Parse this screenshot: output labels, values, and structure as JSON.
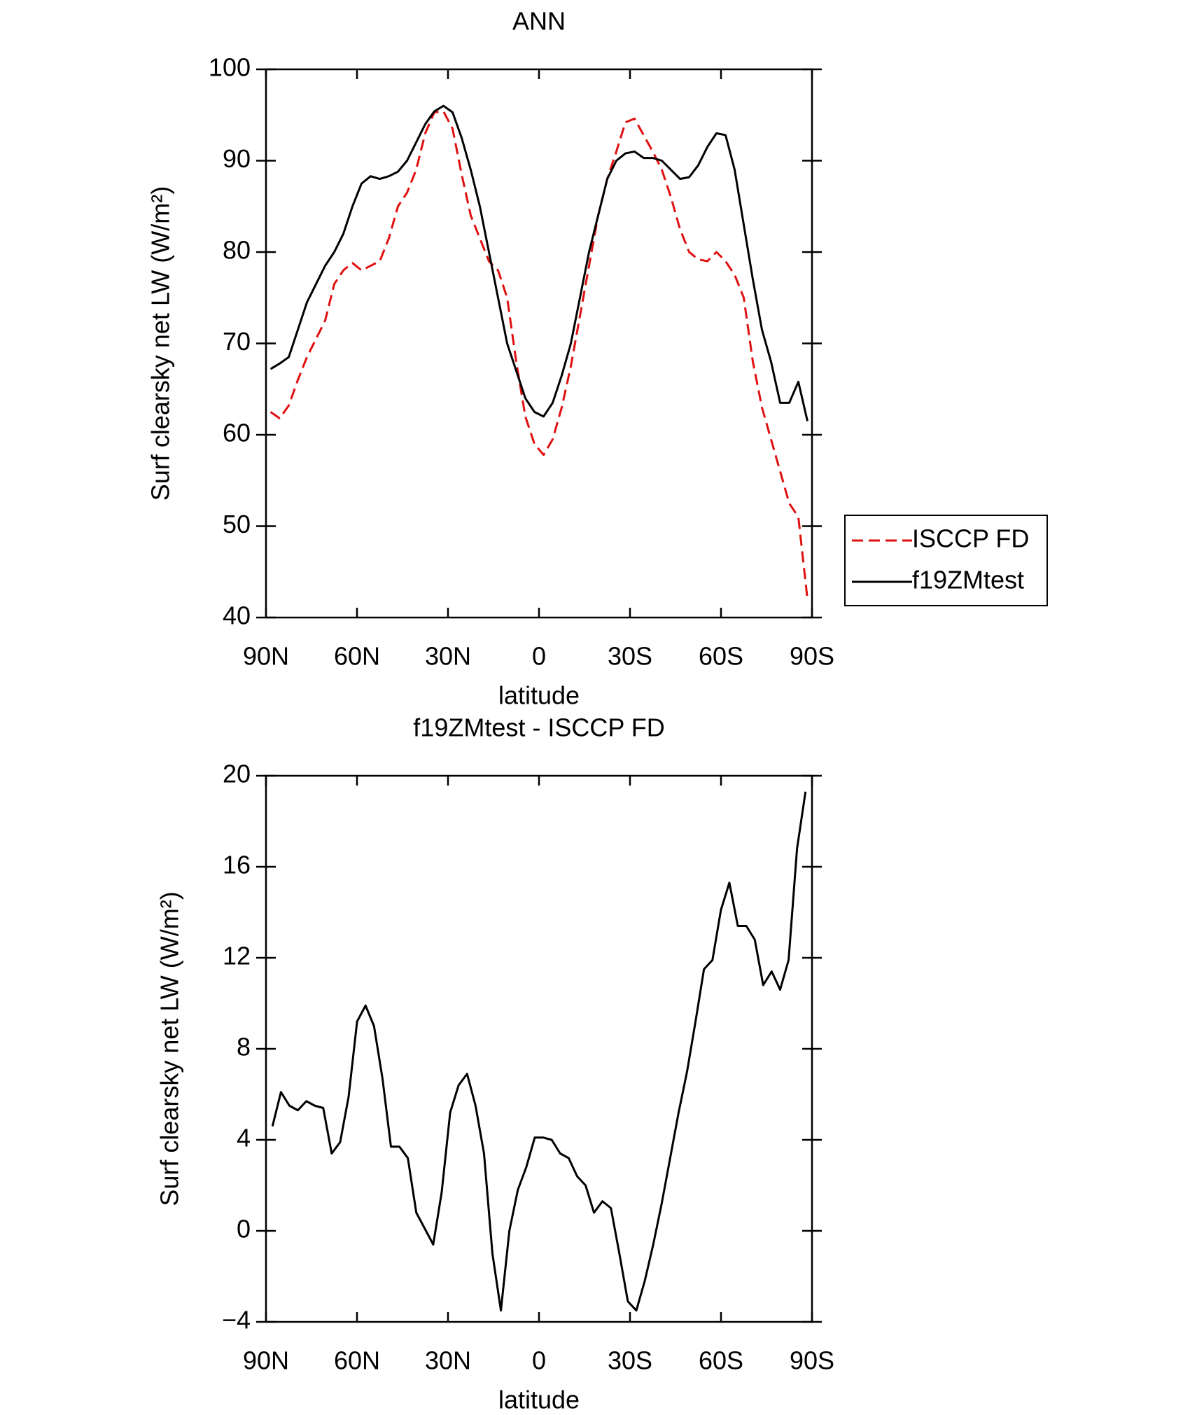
{
  "chart_data": [
    {
      "type": "line",
      "title": "ANN",
      "x_label": "latitude",
      "y_label": "Surf clearsky net LW (W/m²)",
      "x": [
        88.5,
        85.5,
        82.5,
        79.5,
        76.5,
        73.5,
        70.5,
        67.5,
        64.5,
        61.5,
        58.5,
        55.5,
        52.5,
        49.5,
        46.5,
        43.5,
        40.5,
        37.5,
        34.5,
        31.5,
        28.5,
        25.5,
        22.5,
        19.5,
        16.5,
        13.5,
        10.5,
        7.5,
        4.5,
        1.5,
        -1.5,
        -4.5,
        -7.5,
        -10.5,
        -13.5,
        -16.5,
        -19.5,
        -22.5,
        -25.5,
        -28.5,
        -31.5,
        -34.5,
        -37.5,
        -40.5,
        -43.5,
        -46.5,
        -49.5,
        -52.5,
        -55.5,
        -58.5,
        -61.5,
        -64.5,
        -67.5,
        -70.5,
        -73.5,
        -76.5,
        -79.5,
        -82.5,
        -85.5,
        -88.5
      ],
      "series": [
        {
          "name": "ISCCP FD",
          "color": "#e01010",
          "dash": true,
          "values": [
            62.5,
            61.8,
            63.2,
            66,
            68.5,
            70.5,
            72.5,
            76.5,
            78,
            78.8,
            78,
            78.5,
            79,
            81.5,
            85,
            86.5,
            89,
            93,
            95.3,
            95.4,
            93.5,
            88.5,
            84,
            81.5,
            79,
            78,
            75,
            68,
            62,
            59,
            57.8,
            59.5,
            63,
            67.5,
            73,
            78.5,
            84,
            88,
            91,
            94.2,
            94.6,
            92.8,
            91,
            89,
            86,
            82.5,
            80,
            79.2,
            79,
            80,
            79,
            77.5,
            75,
            68,
            63,
            59.5,
            56,
            52.5,
            51,
            42
          ]
        },
        {
          "name": "f19ZMtest",
          "color": "#000000",
          "dash": false,
          "values": [
            67.2,
            67.8,
            68.5,
            71.5,
            74.5,
            76.5,
            78.5,
            80,
            82,
            85,
            87.5,
            88.3,
            88,
            88.3,
            88.8,
            90,
            92,
            94,
            95.4,
            96,
            95.3,
            92.5,
            89,
            85,
            80,
            75,
            70,
            67,
            64,
            62.5,
            62,
            63.5,
            66.5,
            70,
            75,
            80,
            84,
            88,
            90,
            90.8,
            91,
            90.3,
            90.3,
            90,
            89,
            88,
            88.2,
            89.5,
            91.5,
            93,
            92.8,
            89,
            83,
            77,
            71.5,
            68,
            63.5,
            63.5,
            65.8,
            61.5
          ]
        }
      ],
      "xlim": [
        90,
        -90
      ],
      "xticks": [
        {
          "value": 90,
          "label": "90N"
        },
        {
          "value": 60,
          "label": "60N"
        },
        {
          "value": 30,
          "label": "30N"
        },
        0,
        {
          "value": -30,
          "label": "30S"
        },
        {
          "value": -60,
          "label": "60S"
        },
        {
          "value": -90,
          "label": "90S"
        }
      ],
      "ylim": [
        40,
        100
      ],
      "yticks": [
        40,
        50,
        60,
        70,
        80,
        90,
        100
      ],
      "legend": "outside right"
    },
    {
      "type": "line",
      "title": "f19ZMtest - ISCCP FD",
      "x_label": "latitude",
      "y_label": "Surf clearsky net LW (W/m²)",
      "x": [
        87.86,
        85.07,
        82.28,
        79.49,
        76.7,
        73.91,
        71.13,
        68.34,
        65.55,
        62.76,
        59.97,
        57.18,
        54.39,
        51.6,
        48.81,
        46.02,
        43.24,
        40.45,
        37.66,
        34.87,
        32.08,
        29.29,
        26.5,
        23.71,
        20.92,
        18.13,
        15.35,
        12.56,
        9.77,
        6.98,
        4.19,
        1.4,
        -1.4,
        -4.19,
        -6.98,
        -9.77,
        -12.56,
        -15.35,
        -18.13,
        -20.92,
        -23.71,
        -26.5,
        -29.29,
        -32.08,
        -34.87,
        -37.66,
        -40.45,
        -43.24,
        -46.02,
        -48.81,
        -51.6,
        -54.39,
        -57.18,
        -59.97,
        -62.76,
        -65.55,
        -68.34,
        -71.13,
        -73.91,
        -76.7,
        -79.49,
        -82.28,
        -85.07,
        -87.86
      ],
      "values": [
        4.6,
        6.1,
        5.5,
        5.3,
        5.7,
        5.5,
        5.4,
        3.4,
        3.9,
        5.9,
        9.2,
        9.9,
        9,
        6.7,
        3.7,
        3.7,
        3.2,
        0.8,
        0.1,
        -0.6,
        1.7,
        5.2,
        6.4,
        6.9,
        5.5,
        3.4,
        -1,
        -3.5,
        0,
        1.8,
        2.8,
        4.1,
        4.1,
        4,
        3.4,
        3.2,
        2.4,
        2,
        0.8,
        1.3,
        1,
        -1,
        -3.1,
        -3.5,
        -2.2,
        -0.6,
        1.2,
        3.2,
        5.2,
        7,
        9.2,
        11.5,
        11.9,
        14.1,
        15.3,
        13.4,
        13.4,
        12.8,
        10.8,
        11.4,
        10.6,
        11.9,
        16.8,
        19.3
      ],
      "color": "#000000",
      "xlim": [
        90,
        -90
      ],
      "xticks": [
        {
          "value": 90,
          "label": "90N"
        },
        {
          "value": 60,
          "label": "60N"
        },
        {
          "value": 30,
          "label": "30N"
        },
        0,
        {
          "value": -30,
          "label": "30S"
        },
        {
          "value": -60,
          "label": "60S"
        },
        {
          "value": -90,
          "label": "90S"
        }
      ],
      "ylim": [
        -4,
        20
      ],
      "yticks": [
        {
          "value": -4,
          "label": "−4"
        },
        0,
        4,
        8,
        12,
        16,
        20
      ]
    }
  ]
}
